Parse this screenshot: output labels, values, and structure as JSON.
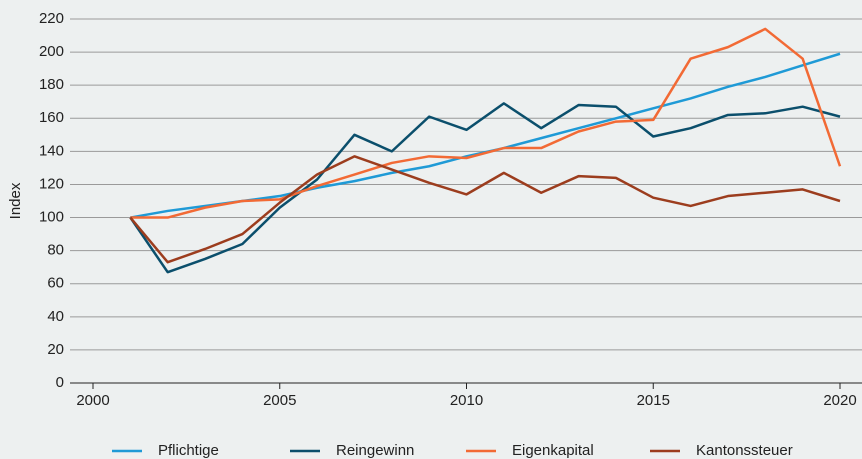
{
  "chart_data": {
    "type": "line",
    "y_label": "Index",
    "x": [
      2001,
      2002,
      2003,
      2004,
      2005,
      2006,
      2007,
      2008,
      2009,
      2010,
      2011,
      2012,
      2013,
      2014,
      2015,
      2016,
      2017,
      2018,
      2019,
      2020
    ],
    "series": [
      {
        "name": "Pflichtige",
        "color": "#1f9ad6",
        "values": [
          100,
          104,
          107,
          110,
          113,
          118,
          122,
          127,
          131,
          137,
          142,
          148,
          154,
          160,
          166,
          172,
          179,
          185,
          192,
          199
        ]
      },
      {
        "name": "Reingewinn",
        "color": "#0b4f6c",
        "values": [
          100,
          67,
          75,
          84,
          106,
          123,
          150,
          140,
          161,
          153,
          169,
          154,
          168,
          167,
          149,
          154,
          162,
          163,
          167,
          161
        ]
      },
      {
        "name": "Eigenkapital",
        "color": "#f26a35",
        "values": [
          100,
          100,
          106,
          110,
          111,
          119,
          126,
          133,
          137,
          136,
          142,
          142,
          152,
          158,
          159,
          196,
          203,
          214,
          196,
          131
        ]
      },
      {
        "name": "Kantonssteuer",
        "color": "#9c3d1e",
        "values": [
          100,
          73,
          81,
          90,
          109,
          126,
          137,
          129,
          121,
          114,
          127,
          115,
          125,
          124,
          112,
          107,
          113,
          115,
          117,
          110
        ]
      }
    ],
    "xlim": [
      2000,
      2020
    ],
    "xticks": [
      2000,
      2005,
      2010,
      2015,
      2020
    ],
    "ylim": [
      0,
      220
    ],
    "yticks": [
      0,
      20,
      40,
      60,
      80,
      100,
      120,
      140,
      160,
      180,
      200,
      220
    ],
    "grid": true,
    "legend": "bottom"
  }
}
